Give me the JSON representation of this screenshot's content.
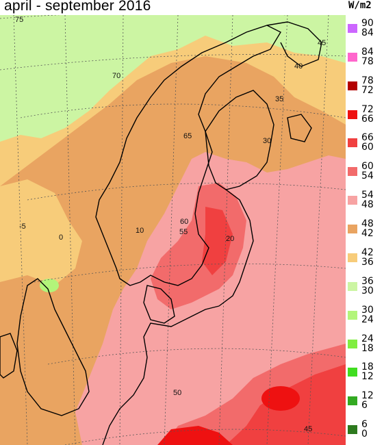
{
  "title": "april - september 2016",
  "unit": "W/m2",
  "legend": [
    {
      "hi": "90",
      "lo": "84",
      "color": "#cc66ff"
    },
    {
      "hi": "84",
      "lo": "78",
      "color": "#ff66cc"
    },
    {
      "hi": "78",
      "lo": "72",
      "color": "#b30000"
    },
    {
      "hi": "72",
      "lo": "66",
      "color": "#ee1111"
    },
    {
      "hi": "66",
      "lo": "60",
      "color": "#f04040"
    },
    {
      "hi": "60",
      "lo": "54",
      "color": "#f26b6b"
    },
    {
      "hi": "54",
      "lo": "48",
      "color": "#f7a3a3"
    },
    {
      "hi": "48",
      "lo": "42",
      "color": "#e9a461"
    },
    {
      "hi": "42",
      "lo": "36",
      "color": "#f7cc7a"
    },
    {
      "hi": "36",
      "lo": "30",
      "color": "#ccf5a3"
    },
    {
      "hi": "30",
      "lo": "24",
      "color": "#b3f57a"
    },
    {
      "hi": "24",
      "lo": "18",
      "color": "#80ee40"
    },
    {
      "hi": "18",
      "lo": "12",
      "color": "#40dd20"
    },
    {
      "hi": "12",
      "lo": "6",
      "color": "#33aa22"
    },
    {
      "hi": "6",
      "lo": "0",
      "color": "#2d7a1e"
    }
  ],
  "grid_labels": {
    "lat_75": "75",
    "lat_70": "70",
    "lat_65": "65",
    "lat_60": "60",
    "lat_55": "55",
    "lat_50": "50",
    "lat_45": "45",
    "lon_m5": "-5",
    "lon_0": "0",
    "lon_10": "10",
    "lon_20": "20",
    "lon_30": "30",
    "lon_35": "35",
    "lon_40": "40",
    "lon_45": "45"
  }
}
